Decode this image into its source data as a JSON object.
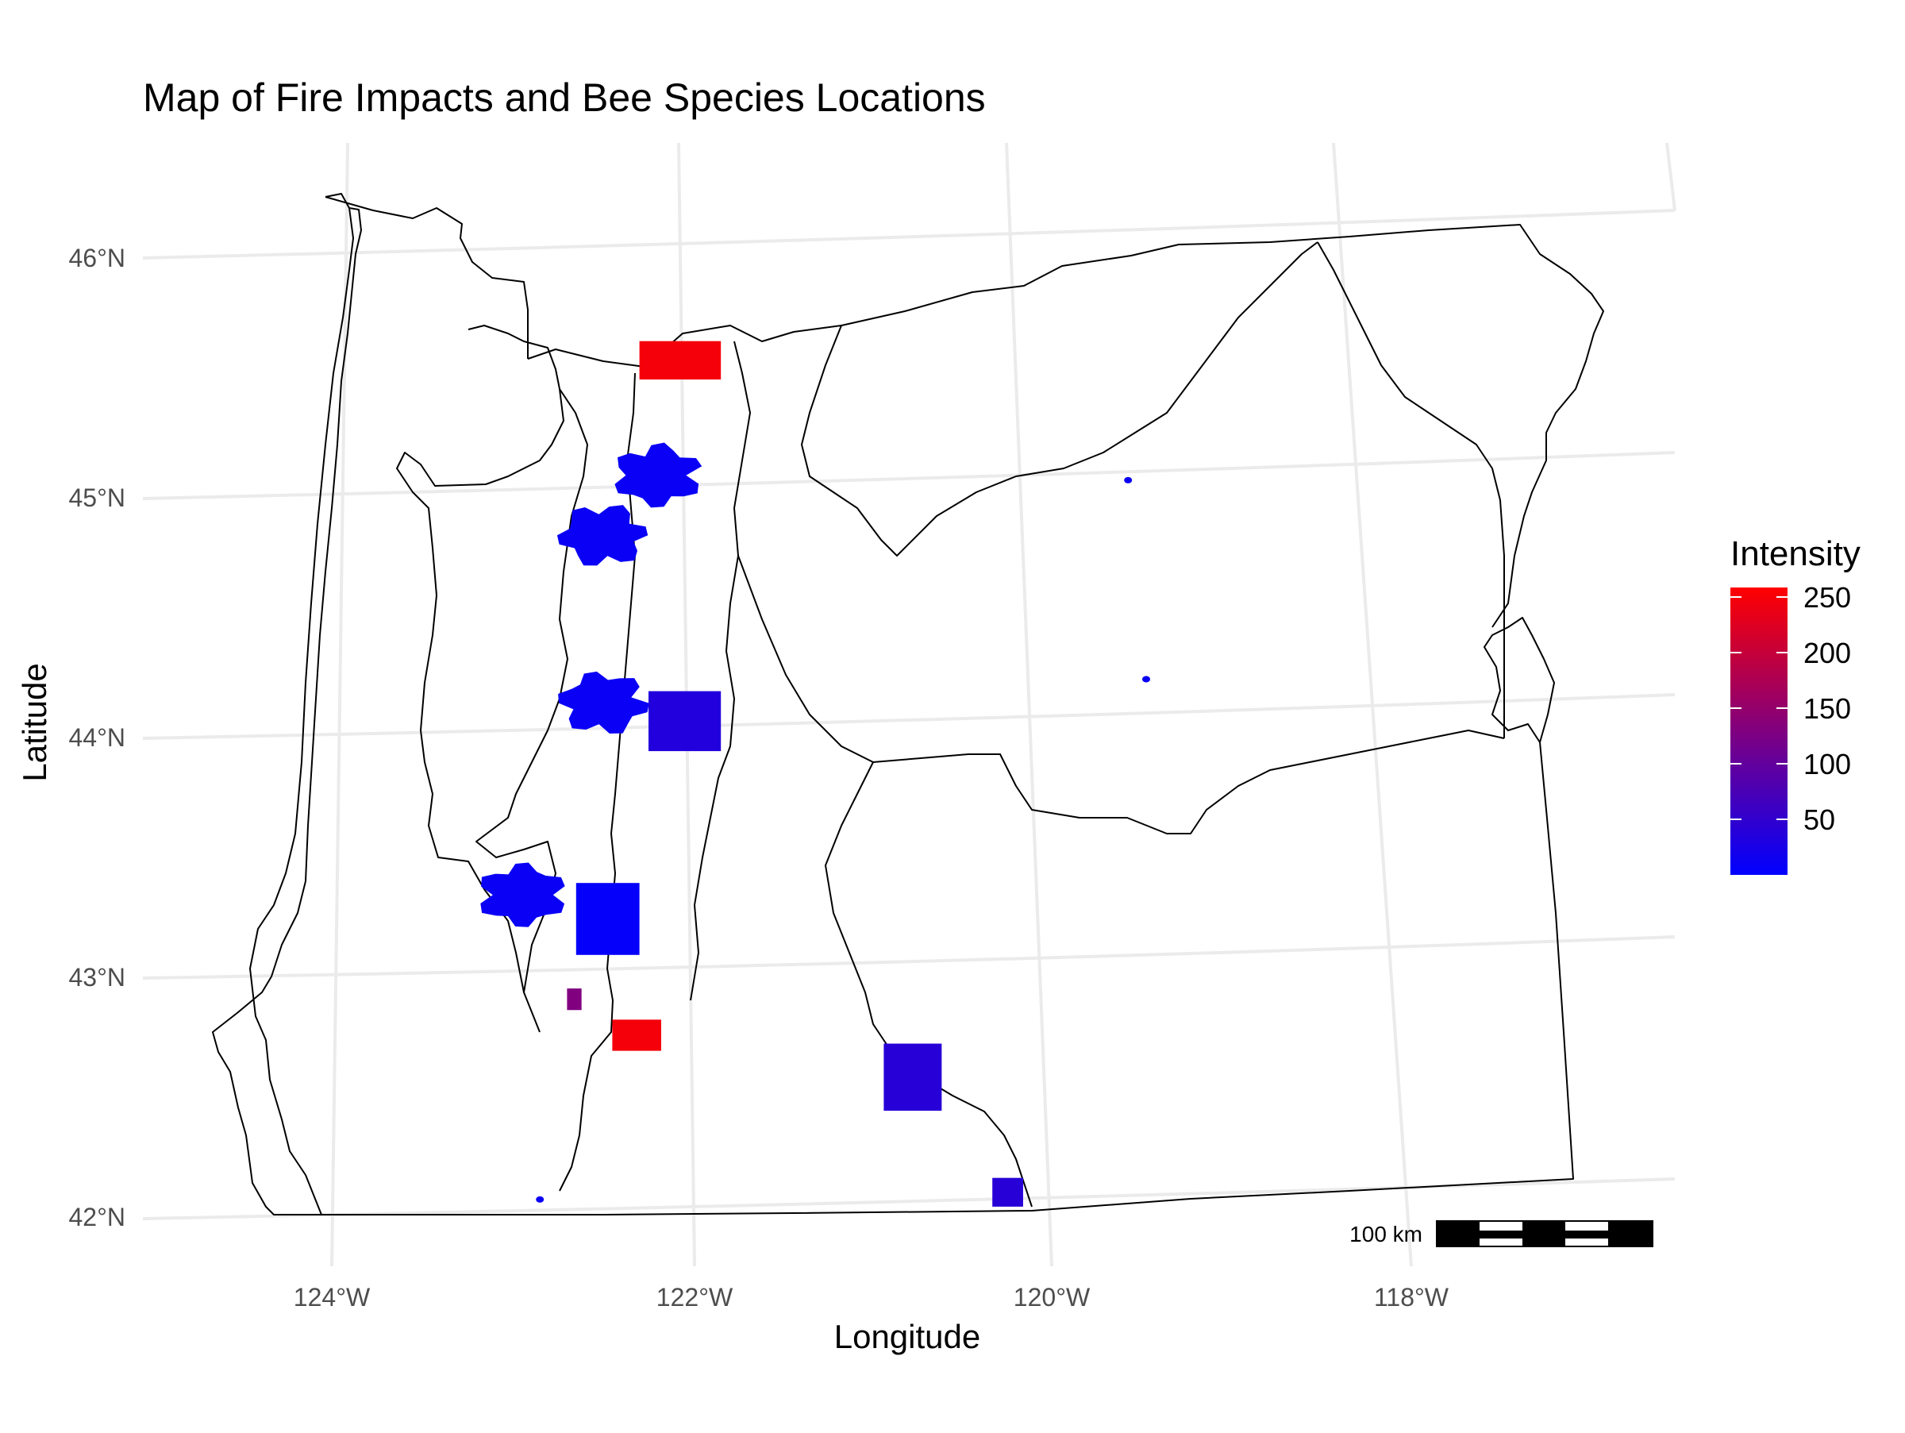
{
  "title": "Map of Fire Impacts and Bee Species Locations",
  "x_axis": {
    "label": "Longitude",
    "ticks": [
      "124°W",
      "122°W",
      "120°W",
      "118°W"
    ]
  },
  "y_axis": {
    "label": "Latitude",
    "ticks": [
      "46°N",
      "45°N",
      "44°N",
      "43°N",
      "42°N"
    ]
  },
  "legend": {
    "title": "Intensity",
    "ticks": [
      "250",
      "200",
      "150",
      "100",
      "50"
    ],
    "color_low": "#0000ff",
    "color_high": "#ff0000"
  },
  "scale_bar": {
    "label": "100 km"
  },
  "chart_data": {
    "type": "heatmap",
    "title": "Map of Fire Impacts and Bee Species Locations",
    "xlabel": "Longitude",
    "ylabel": "Latitude",
    "xlim": [
      -125,
      -116.6
    ],
    "ylim": [
      41.8,
      46.4
    ],
    "grid": true,
    "legend_placement": "right",
    "colorbar": {
      "title": "Intensity",
      "range": [
        0,
        260
      ],
      "low": "#0000ff",
      "high": "#ff0000"
    },
    "raster_tiles": [
      {
        "lon_min": -122.3,
        "lon_max": -121.85,
        "lat_min": 45.5,
        "lat_max": 45.66,
        "intensity": 250
      },
      {
        "lon_min": -122.25,
        "lon_max": -121.85,
        "lat_min": 43.95,
        "lat_max": 44.2,
        "intensity": 35
      },
      {
        "lon_min": -122.65,
        "lon_max": -122.3,
        "lat_min": 43.1,
        "lat_max": 43.4,
        "intensity": 5
      },
      {
        "lon_min": -122.7,
        "lon_max": -122.62,
        "lat_min": 42.87,
        "lat_max": 42.96,
        "intensity": 130
      },
      {
        "lon_min": -122.45,
        "lon_max": -122.18,
        "lat_min": 42.7,
        "lat_max": 42.83,
        "intensity": 250
      },
      {
        "lon_min": -120.95,
        "lon_max": -120.63,
        "lat_min": 42.45,
        "lat_max": 42.73,
        "intensity": 40
      },
      {
        "lon_min": -120.35,
        "lon_max": -120.18,
        "lat_min": 42.05,
        "lat_max": 42.17,
        "intensity": 40
      }
    ],
    "fire_perimeters": [
      {
        "lon": -122.2,
        "lat": 45.1,
        "intensity": 10
      },
      {
        "lon": -122.5,
        "lat": 44.85,
        "intensity": 10
      },
      {
        "lon": -122.5,
        "lat": 44.15,
        "intensity": 10
      },
      {
        "lon": -122.95,
        "lat": 43.35,
        "intensity": 10
      },
      {
        "lon": -119.6,
        "lat": 45.08,
        "intensity": 10
      },
      {
        "lon": -119.5,
        "lat": 44.25,
        "intensity": 10
      },
      {
        "lon": -122.85,
        "lat": 42.08,
        "intensity": 10
      }
    ]
  }
}
